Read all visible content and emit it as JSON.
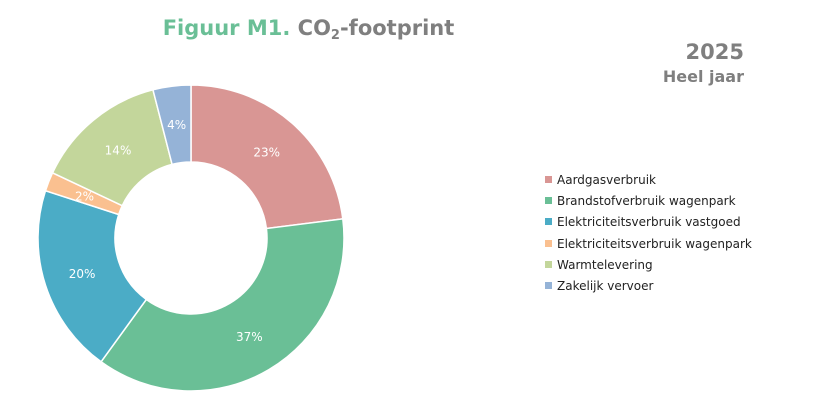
{
  "header": {
    "figure_label": "Figuur M1.",
    "title_prefix": "CO",
    "title_subscript": "2",
    "title_suffix": "-footprint",
    "year": "2025",
    "period": "Heel jaar"
  },
  "chart_data": {
    "type": "pie",
    "donut": true,
    "legend_position": "right",
    "categories": [
      "Aardgasverbruik",
      "Brandstofverbruik wagenpark",
      "Elektriciteitsverbruik vastgoed",
      "Elektriciteitsverbruik wagenpark",
      "Warmtelevering",
      "Zakelijk vervoer"
    ],
    "values": [
      23,
      37,
      20,
      2,
      14,
      4
    ],
    "labels": [
      "23%",
      "37%",
      "20%",
      "2%",
      "14%",
      "4%"
    ],
    "colors": [
      "#d99694",
      "#6abf96",
      "#4bacc6",
      "#fac090",
      "#c3d69b",
      "#95b3d7"
    ]
  }
}
